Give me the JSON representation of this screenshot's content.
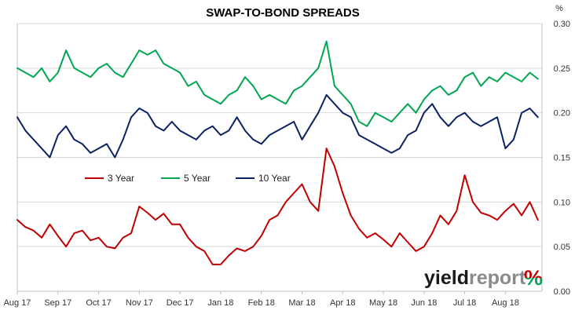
{
  "chart_data": {
    "type": "line",
    "title": "SWAP-TO-BOND SPREADS",
    "ylabel": "%",
    "xlabel": "",
    "ylim": [
      0,
      0.3
    ],
    "y_ticks": [
      "0.00",
      "0.05",
      "0.10",
      "0.15",
      "0.20",
      "0.25",
      "0.30"
    ],
    "x_tick_labels": [
      "Aug 17",
      "Sep 17",
      "Oct 17",
      "Nov 17",
      "Dec 17",
      "Jan 18",
      "Feb 18",
      "Mar 18",
      "Apr 18",
      "May 18",
      "Jun 18",
      "Jul 18",
      "Aug 18"
    ],
    "x_tick_positions": [
      0,
      1,
      2,
      3,
      4,
      5,
      6,
      7,
      8,
      9,
      10,
      11,
      12
    ],
    "x_range": [
      0,
      12.9
    ],
    "grid": "horizontal",
    "legend_position": "center-left",
    "series": [
      {
        "name": "3 Year",
        "color": "#c00000",
        "x": [
          0,
          0.2,
          0.4,
          0.6,
          0.8,
          1.0,
          1.2,
          1.4,
          1.6,
          1.8,
          2.0,
          2.2,
          2.4,
          2.6,
          2.8,
          3.0,
          3.2,
          3.4,
          3.6,
          3.8,
          4.0,
          4.2,
          4.4,
          4.6,
          4.8,
          5.0,
          5.2,
          5.4,
          5.6,
          5.8,
          6.0,
          6.2,
          6.4,
          6.6,
          6.8,
          7.0,
          7.2,
          7.4,
          7.6,
          7.8,
          8.0,
          8.2,
          8.4,
          8.6,
          8.8,
          9.0,
          9.2,
          9.4,
          9.6,
          9.8,
          10.0,
          10.2,
          10.4,
          10.6,
          10.8,
          11.0,
          11.2,
          11.4,
          11.6,
          11.8,
          12.0,
          12.2,
          12.4,
          12.6,
          12.8
        ],
        "values": [
          0.08,
          0.072,
          0.068,
          0.06,
          0.075,
          0.062,
          0.05,
          0.065,
          0.068,
          0.057,
          0.06,
          0.05,
          0.048,
          0.06,
          0.065,
          0.095,
          0.088,
          0.08,
          0.087,
          0.075,
          0.075,
          0.06,
          0.05,
          0.045,
          0.03,
          0.03,
          0.04,
          0.048,
          0.045,
          0.05,
          0.062,
          0.08,
          0.085,
          0.1,
          0.11,
          0.12,
          0.1,
          0.09,
          0.16,
          0.14,
          0.11,
          0.085,
          0.07,
          0.06,
          0.065,
          0.058,
          0.05,
          0.065,
          0.055,
          0.045,
          0.05,
          0.065,
          0.085,
          0.075,
          0.09,
          0.13,
          0.1,
          0.088,
          0.085,
          0.08,
          0.09,
          0.098,
          0.085,
          0.1,
          0.08
        ]
      },
      {
        "name": "5 Year",
        "color": "#00a651",
        "x": [
          0,
          0.2,
          0.4,
          0.6,
          0.8,
          1.0,
          1.2,
          1.4,
          1.6,
          1.8,
          2.0,
          2.2,
          2.4,
          2.6,
          2.8,
          3.0,
          3.2,
          3.4,
          3.6,
          3.8,
          4.0,
          4.2,
          4.4,
          4.6,
          4.8,
          5.0,
          5.2,
          5.4,
          5.6,
          5.8,
          6.0,
          6.2,
          6.4,
          6.6,
          6.8,
          7.0,
          7.2,
          7.4,
          7.6,
          7.8,
          8.0,
          8.2,
          8.4,
          8.6,
          8.8,
          9.0,
          9.2,
          9.4,
          9.6,
          9.8,
          10.0,
          10.2,
          10.4,
          10.6,
          10.8,
          11.0,
          11.2,
          11.4,
          11.6,
          11.8,
          12.0,
          12.2,
          12.4,
          12.6,
          12.8
        ],
        "values": [
          0.25,
          0.245,
          0.24,
          0.25,
          0.235,
          0.245,
          0.27,
          0.25,
          0.245,
          0.24,
          0.25,
          0.255,
          0.245,
          0.24,
          0.255,
          0.27,
          0.265,
          0.27,
          0.255,
          0.25,
          0.245,
          0.23,
          0.235,
          0.22,
          0.215,
          0.21,
          0.22,
          0.225,
          0.24,
          0.23,
          0.215,
          0.22,
          0.215,
          0.21,
          0.225,
          0.23,
          0.24,
          0.25,
          0.28,
          0.23,
          0.22,
          0.21,
          0.19,
          0.185,
          0.2,
          0.195,
          0.19,
          0.2,
          0.21,
          0.2,
          0.215,
          0.225,
          0.23,
          0.22,
          0.225,
          0.24,
          0.245,
          0.23,
          0.24,
          0.235,
          0.245,
          0.24,
          0.235,
          0.245,
          0.238
        ]
      },
      {
        "name": "10 Year",
        "color": "#0b2265",
        "x": [
          0,
          0.2,
          0.4,
          0.6,
          0.8,
          1.0,
          1.2,
          1.4,
          1.6,
          1.8,
          2.0,
          2.2,
          2.4,
          2.6,
          2.8,
          3.0,
          3.2,
          3.4,
          3.6,
          3.8,
          4.0,
          4.2,
          4.4,
          4.6,
          4.8,
          5.0,
          5.2,
          5.4,
          5.6,
          5.8,
          6.0,
          6.2,
          6.4,
          6.6,
          6.8,
          7.0,
          7.2,
          7.4,
          7.6,
          7.8,
          8.0,
          8.2,
          8.4,
          8.6,
          8.8,
          9.0,
          9.2,
          9.4,
          9.6,
          9.8,
          10.0,
          10.2,
          10.4,
          10.6,
          10.8,
          11.0,
          11.2,
          11.4,
          11.6,
          11.8,
          12.0,
          12.2,
          12.4,
          12.6,
          12.8
        ],
        "values": [
          0.195,
          0.18,
          0.17,
          0.16,
          0.15,
          0.175,
          0.185,
          0.17,
          0.165,
          0.155,
          0.16,
          0.165,
          0.15,
          0.17,
          0.195,
          0.205,
          0.2,
          0.185,
          0.18,
          0.19,
          0.18,
          0.175,
          0.17,
          0.18,
          0.185,
          0.175,
          0.18,
          0.195,
          0.18,
          0.17,
          0.165,
          0.175,
          0.18,
          0.185,
          0.19,
          0.17,
          0.185,
          0.2,
          0.22,
          0.21,
          0.2,
          0.195,
          0.175,
          0.17,
          0.165,
          0.16,
          0.155,
          0.16,
          0.175,
          0.18,
          0.2,
          0.21,
          0.195,
          0.185,
          0.195,
          0.2,
          0.19,
          0.185,
          0.19,
          0.195,
          0.16,
          0.17,
          0.2,
          0.205,
          0.195
        ]
      }
    ]
  },
  "watermark": {
    "text_main": "yield",
    "text_sub": "report",
    "text_pct": "%",
    "color_main": "#1a1a1a",
    "color_sub": "#8a8a8a",
    "color_pct_top": "#c00000",
    "color_pct_bottom": "#00a651"
  }
}
